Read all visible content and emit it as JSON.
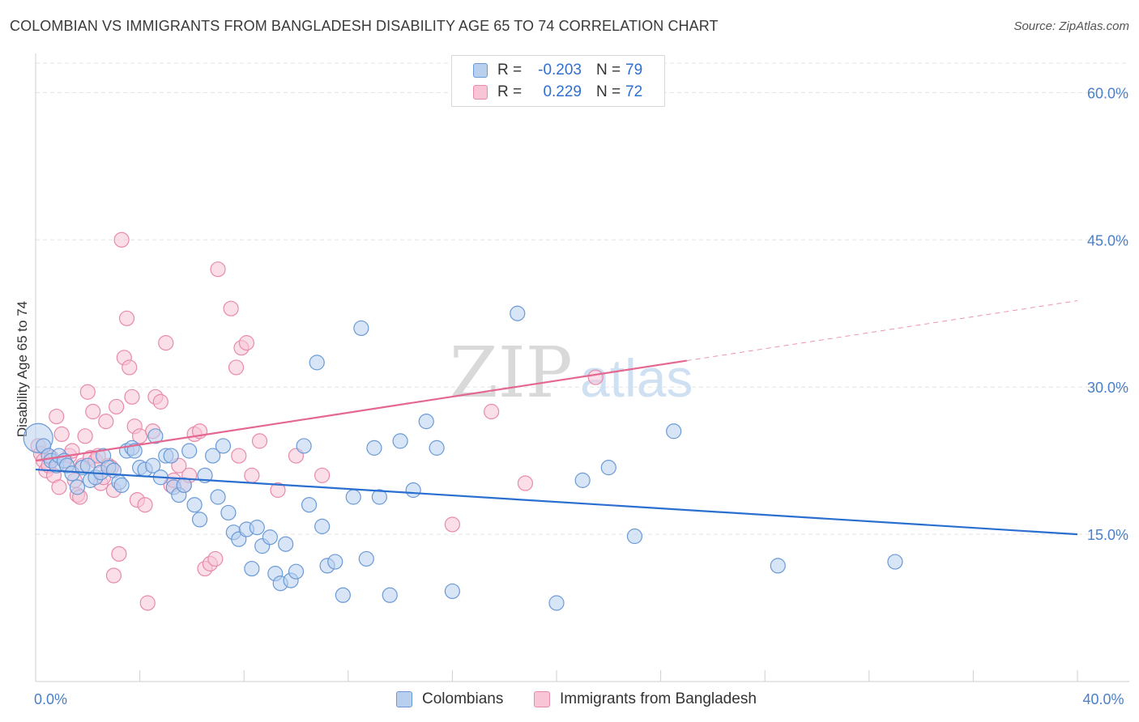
{
  "title": "COLOMBIAN VS IMMIGRANTS FROM BANGLADESH DISABILITY AGE 65 TO 74 CORRELATION CHART",
  "source": "Source: ZipAtlas.com",
  "watermark": {
    "part1": "ZIP",
    "part2": "atlas"
  },
  "legend": {
    "rows": [
      {
        "r_label": "R =",
        "r_value": "-0.203",
        "n_label": "N =",
        "n_value": "79"
      },
      {
        "r_label": "R =",
        "r_value": "0.229",
        "n_label": "N =",
        "n_value": "72"
      }
    ]
  },
  "bottom_legend": [
    "Colombians",
    "Immigrants from Bangladesh"
  ],
  "colors": {
    "blue_fill": "#b8d0ee",
    "blue_stroke": "#6a9ad6",
    "blue_line": "#2a6fcf",
    "pink_fill": "#f7c5d6",
    "pink_stroke": "#e88aab",
    "pink_line": "#e3678f",
    "grid": "#e3e3e3",
    "tick_label": "#4a7fc9"
  },
  "chart_data": {
    "type": "scatter",
    "title": "COLOMBIAN VS IMMIGRANTS FROM BANGLADESH DISABILITY AGE 65 TO 74 CORRELATION CHART",
    "xlabel": "",
    "ylabel": "Disability Age 65 to 74",
    "xlim": [
      0,
      40
    ],
    "ylim": [
      0,
      63
    ],
    "x_tick_labels": [
      {
        "value": 0,
        "label": "0.0%"
      },
      {
        "value": 40,
        "label": "40.0%"
      }
    ],
    "y_tick_labels": [
      {
        "value": 15,
        "label": "15.0%"
      },
      {
        "value": 30,
        "label": "30.0%"
      },
      {
        "value": 45,
        "label": "45.0%"
      },
      {
        "value": 60,
        "label": "60.0%"
      }
    ],
    "series": [
      {
        "name": "Colombians",
        "R": -0.203,
        "N": 79,
        "trend": {
          "x0": 0,
          "y0": 21.6,
          "x1": 40,
          "y1": 15.0,
          "dashed_from": null
        },
        "points": [
          [
            0.1,
            24.8
          ],
          [
            0.3,
            24.0
          ],
          [
            0.5,
            23.0
          ],
          [
            0.6,
            22.5
          ],
          [
            0.8,
            22.0
          ],
          [
            0.9,
            23.0
          ],
          [
            1.1,
            22.5
          ],
          [
            1.2,
            22.0
          ],
          [
            1.4,
            21.2
          ],
          [
            1.6,
            19.8
          ],
          [
            1.8,
            21.8
          ],
          [
            2.0,
            22.0
          ],
          [
            2.1,
            20.5
          ],
          [
            2.3,
            20.8
          ],
          [
            2.5,
            21.3
          ],
          [
            2.6,
            23.0
          ],
          [
            2.8,
            21.8
          ],
          [
            3.0,
            21.5
          ],
          [
            3.2,
            20.3
          ],
          [
            3.3,
            20.0
          ],
          [
            3.5,
            23.5
          ],
          [
            3.7,
            23.8
          ],
          [
            3.8,
            23.5
          ],
          [
            4.0,
            21.8
          ],
          [
            4.2,
            21.6
          ],
          [
            4.5,
            22.0
          ],
          [
            4.6,
            25.0
          ],
          [
            4.8,
            20.8
          ],
          [
            5.0,
            23.0
          ],
          [
            5.2,
            23.0
          ],
          [
            5.3,
            19.8
          ],
          [
            5.5,
            19.0
          ],
          [
            5.7,
            20.0
          ],
          [
            5.9,
            23.5
          ],
          [
            6.1,
            18.0
          ],
          [
            6.3,
            16.5
          ],
          [
            6.5,
            21.0
          ],
          [
            6.8,
            23.0
          ],
          [
            7.0,
            18.8
          ],
          [
            7.2,
            24.0
          ],
          [
            7.4,
            17.2
          ],
          [
            7.6,
            15.2
          ],
          [
            7.8,
            14.5
          ],
          [
            8.1,
            15.5
          ],
          [
            8.3,
            11.5
          ],
          [
            8.5,
            15.7
          ],
          [
            8.7,
            13.8
          ],
          [
            9.0,
            14.7
          ],
          [
            9.2,
            11.0
          ],
          [
            9.4,
            10.0
          ],
          [
            9.6,
            14.0
          ],
          [
            9.8,
            10.3
          ],
          [
            10.0,
            11.2
          ],
          [
            10.3,
            24.0
          ],
          [
            10.5,
            18.0
          ],
          [
            10.8,
            32.5
          ],
          [
            11.0,
            15.8
          ],
          [
            11.2,
            11.8
          ],
          [
            11.5,
            12.2
          ],
          [
            11.8,
            8.8
          ],
          [
            12.2,
            18.8
          ],
          [
            12.5,
            36.0
          ],
          [
            12.7,
            12.5
          ],
          [
            13.0,
            23.8
          ],
          [
            13.2,
            18.8
          ],
          [
            13.6,
            8.8
          ],
          [
            14.0,
            24.5
          ],
          [
            14.5,
            19.5
          ],
          [
            15.0,
            26.5
          ],
          [
            15.4,
            23.8
          ],
          [
            16.0,
            9.2
          ],
          [
            18.5,
            37.5
          ],
          [
            20.0,
            8.0
          ],
          [
            21.0,
            20.5
          ],
          [
            22.0,
            21.8
          ],
          [
            24.5,
            25.5
          ],
          [
            28.5,
            11.8
          ],
          [
            33.0,
            12.2
          ],
          [
            23.0,
            14.8
          ]
        ]
      },
      {
        "name": "Immigrants from Bangladesh",
        "R": 0.229,
        "N": 72,
        "trend": {
          "x0": 0,
          "y0": 22.5,
          "x1": 40,
          "y1": 38.8,
          "dashed_from": 25
        },
        "points": [
          [
            0.1,
            24.0
          ],
          [
            0.2,
            23.2
          ],
          [
            0.3,
            22.5
          ],
          [
            0.4,
            21.5
          ],
          [
            0.5,
            22.0
          ],
          [
            0.6,
            22.8
          ],
          [
            0.7,
            21.0
          ],
          [
            0.8,
            27.0
          ],
          [
            0.9,
            19.8
          ],
          [
            1.0,
            25.2
          ],
          [
            1.1,
            22.5
          ],
          [
            1.2,
            22.0
          ],
          [
            1.3,
            23.0
          ],
          [
            1.4,
            23.5
          ],
          [
            1.5,
            20.5
          ],
          [
            1.6,
            19.0
          ],
          [
            1.7,
            18.8
          ],
          [
            1.8,
            22.0
          ],
          [
            1.9,
            25.0
          ],
          [
            2.0,
            29.5
          ],
          [
            2.1,
            22.8
          ],
          [
            2.2,
            27.5
          ],
          [
            2.3,
            22.5
          ],
          [
            2.4,
            23.0
          ],
          [
            2.5,
            20.2
          ],
          [
            2.6,
            20.8
          ],
          [
            2.7,
            26.5
          ],
          [
            2.8,
            22.0
          ],
          [
            2.9,
            21.8
          ],
          [
            3.0,
            19.5
          ],
          [
            3.1,
            28.0
          ],
          [
            3.2,
            13.0
          ],
          [
            3.3,
            45.0
          ],
          [
            3.4,
            33.0
          ],
          [
            3.5,
            37.0
          ],
          [
            3.6,
            32.0
          ],
          [
            3.7,
            29.0
          ],
          [
            3.8,
            26.0
          ],
          [
            3.9,
            18.5
          ],
          [
            4.0,
            25.0
          ],
          [
            4.2,
            18.0
          ],
          [
            4.3,
            8.0
          ],
          [
            4.5,
            25.5
          ],
          [
            4.6,
            29.0
          ],
          [
            4.8,
            28.5
          ],
          [
            5.0,
            34.5
          ],
          [
            5.2,
            20.0
          ],
          [
            5.3,
            20.5
          ],
          [
            5.5,
            22.0
          ],
          [
            5.7,
            20.0
          ],
          [
            5.9,
            21.0
          ],
          [
            6.1,
            25.2
          ],
          [
            6.3,
            25.5
          ],
          [
            6.5,
            11.5
          ],
          [
            6.7,
            12.0
          ],
          [
            6.9,
            12.5
          ],
          [
            7.0,
            42.0
          ],
          [
            7.5,
            38.0
          ],
          [
            7.7,
            32.0
          ],
          [
            7.9,
            34.0
          ],
          [
            8.1,
            34.5
          ],
          [
            7.8,
            23.0
          ],
          [
            8.3,
            21.0
          ],
          [
            8.6,
            24.5
          ],
          [
            9.3,
            19.5
          ],
          [
            10.0,
            23.0
          ],
          [
            11.0,
            21.0
          ],
          [
            16.0,
            16.0
          ],
          [
            17.5,
            27.5
          ],
          [
            18.8,
            20.2
          ],
          [
            21.5,
            31.0
          ],
          [
            3.0,
            10.8
          ]
        ]
      }
    ]
  }
}
